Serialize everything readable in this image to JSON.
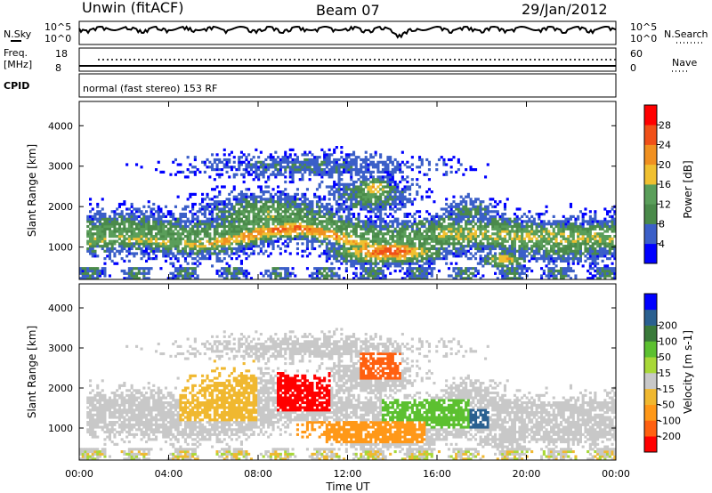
{
  "header": {
    "station": "Unwin (fitACF)",
    "beam": "Beam 07",
    "date": "29/Jan/2012"
  },
  "left_labels": {
    "nsky": "N.Sky",
    "freq_line1": "Freq.",
    "freq_line2": "[MHz]",
    "cpid": "CPID"
  },
  "right_labels": {
    "nsearch": "N.Search",
    "nave": "Nave"
  },
  "noise_scale": {
    "top": "10^5",
    "bottom": "10^0"
  },
  "freq_scale": {
    "left_top": "18",
    "left_bottom": "8",
    "right_top": "60",
    "right_bottom": "0"
  },
  "cpid_text": "normal (fast stereo) 153 RF",
  "colors": {
    "power": [
      "#0000ff",
      "#3b5fc8",
      "#4a8a4a",
      "#5a9e5a",
      "#f0c030",
      "#f09020",
      "#f05018",
      "#ff0000"
    ],
    "velocity": [
      "#ff0000",
      "#ff6010",
      "#ff9818",
      "#f0b830",
      "#c8c8c8",
      "#a8d838",
      "#5cc030",
      "#3a7a3a",
      "#2a6090",
      "#0000ff"
    ]
  },
  "chart_data": [
    {
      "type": "heatmap",
      "title": "",
      "xlabel": "",
      "ylabel": "Slant Range [km]",
      "colorbar_label": "Power [dB]",
      "colorbar_ticks": [
        "4",
        "8",
        "12",
        "16",
        "20",
        "24",
        "28"
      ],
      "y_ticks": [
        "1000",
        "2000",
        "3000",
        "4000"
      ],
      "x_ticks": [],
      "ylim": [
        200,
        4600
      ],
      "xlim": [
        0,
        24
      ]
    },
    {
      "type": "heatmap",
      "title": "",
      "xlabel": "Time UT",
      "ylabel": "Slant Range [km]",
      "colorbar_label": "Velocity [m s-1]",
      "colorbar_ticks": [
        "-200",
        "-100",
        "-50",
        "-15",
        "15",
        "50",
        "100",
        "200"
      ],
      "y_ticks": [
        "1000",
        "2000",
        "3000",
        "4000"
      ],
      "x_ticks": [
        "00:00",
        "04:00",
        "08:00",
        "12:00",
        "16:00",
        "20:00",
        "00:00"
      ],
      "ylim": [
        200,
        4600
      ],
      "xlim": [
        0,
        24
      ]
    }
  ]
}
